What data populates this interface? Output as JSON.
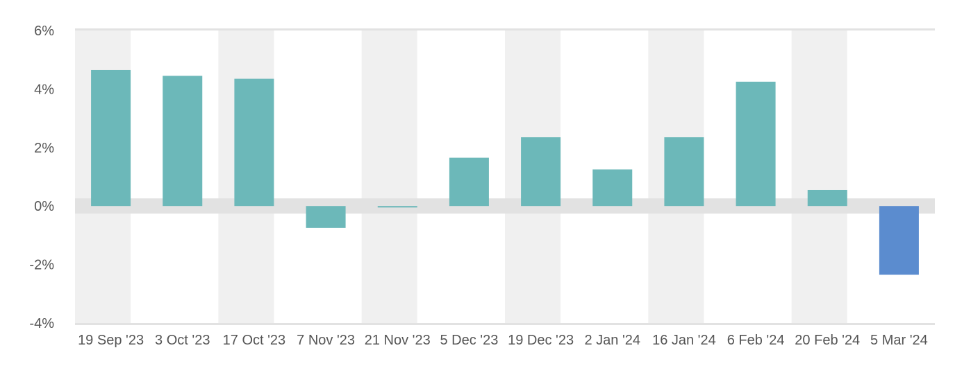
{
  "chart_data": {
    "type": "bar",
    "title": "",
    "xlabel": "",
    "ylabel": "",
    "categories": [
      "19 Sep '23",
      "3 Oct '23",
      "17 Oct '23",
      "7 Nov '23",
      "21 Nov '23",
      "5 Dec '23",
      "19 Dec '23",
      "2 Jan '24",
      "16 Jan '24",
      "6 Feb '24",
      "20 Feb '24",
      "5 Mar '24"
    ],
    "values": [
      4.65,
      4.45,
      4.35,
      -0.75,
      -0.05,
      1.65,
      2.35,
      1.25,
      2.35,
      4.25,
      0.55,
      -2.35
    ],
    "ylim": [
      -4,
      6
    ],
    "y_ticks": [
      6,
      4,
      2,
      0,
      -2,
      -4
    ],
    "y_tick_labels": [
      "6%",
      "4%",
      "2%",
      "0%",
      "-2%",
      "-4%"
    ],
    "grid": false,
    "legend": "none",
    "colors": {
      "bar": "#6cb8b9",
      "bar_last": "#5b8ccf",
      "stripe": "#f0f0f0",
      "zero_band": "#e2e2e2",
      "frame_line": "#e2e2e2",
      "text": "#555555"
    }
  }
}
